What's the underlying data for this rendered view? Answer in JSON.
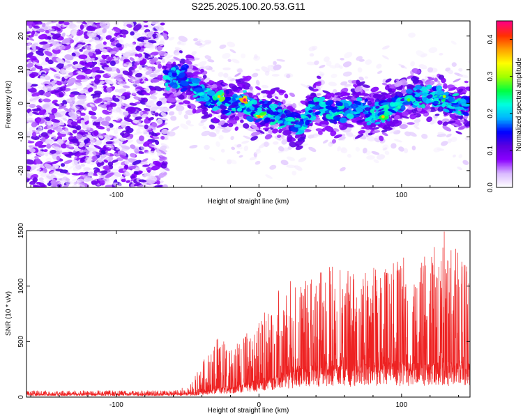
{
  "page": {
    "title": "S225.2025.100.20.53.G11"
  },
  "chart_data": [
    {
      "type": "heatmap",
      "title": "S225.2025.100.20.53.G11",
      "xlabel": "Height of straight line (km)",
      "ylabel": "Frequency (Hz)",
      "xlim": [
        -163,
        148
      ],
      "ylim": [
        -25,
        24.5
      ],
      "x_ticks": [
        -100,
        0,
        100
      ],
      "x_tick_labels": [
        "-100",
        "0",
        "100"
      ],
      "y_ticks": [
        -20,
        -10,
        0,
        10,
        20
      ],
      "y_tick_labels": [
        "-20",
        "-10",
        "0",
        "10",
        "20"
      ],
      "grid": false,
      "colorbar": {
        "label": "Normalized spectral amplitude",
        "range": [
          0.0,
          0.45
        ],
        "ticks": [
          0.0,
          0.1,
          0.2,
          0.3,
          0.4
        ],
        "tick_labels": [
          "0.0",
          "0.1",
          "0.2",
          "0.3",
          "0.4"
        ],
        "colormap": [
          "#ffffff",
          "#d9b8ff",
          "#8a00ff",
          "#5a00e0",
          "#0000ff",
          "#00b4ff",
          "#00ffe0",
          "#00ff40",
          "#a0ff00",
          "#ffff00",
          "#ffa000",
          "#ff3000",
          "#ff0080"
        ]
      },
      "background_noise": {
        "x_range": [
          -163,
          -65
        ],
        "amplitude_range": [
          0.03,
          0.12
        ]
      },
      "signal_ridge": [
        {
          "x": -65,
          "y": 7
        },
        {
          "x": -55,
          "y": 8
        },
        {
          "x": -48,
          "y": 6
        },
        {
          "x": -40,
          "y": 3
        },
        {
          "x": -30,
          "y": 1
        },
        {
          "x": -20,
          "y": 0
        },
        {
          "x": -10,
          "y": 0
        },
        {
          "x": 0,
          "y": -3
        },
        {
          "x": 10,
          "y": -3
        },
        {
          "x": 20,
          "y": -4
        },
        {
          "x": 30,
          "y": -6
        },
        {
          "x": 40,
          "y": 0
        },
        {
          "x": 50,
          "y": -3
        },
        {
          "x": 60,
          "y": -2
        },
        {
          "x": 70,
          "y": -1
        },
        {
          "x": 80,
          "y": -3
        },
        {
          "x": 90,
          "y": -2
        },
        {
          "x": 100,
          "y": 1
        },
        {
          "x": 110,
          "y": 2
        },
        {
          "x": 120,
          "y": 2
        },
        {
          "x": 130,
          "y": 1
        },
        {
          "x": 140,
          "y": -1
        },
        {
          "x": 148,
          "y": 0
        }
      ],
      "hotspots": [
        {
          "x": -28,
          "y": 2,
          "amplitude": 0.36
        },
        {
          "x": -10,
          "y": 1,
          "amplitude": 0.45
        },
        {
          "x": 0,
          "y": -4,
          "amplitude": 0.38
        },
        {
          "x": 87,
          "y": -4,
          "amplitude": 0.36
        },
        {
          "x": 105,
          "y": 1,
          "amplitude": 0.28
        },
        {
          "x": 130,
          "y": 2,
          "amplitude": 0.3
        }
      ]
    },
    {
      "type": "line",
      "title": "",
      "xlabel": "Height of straight line (km)",
      "ylabel": "SNR (10 * v/v)",
      "xlim": [
        -163,
        148
      ],
      "ylim": [
        0,
        1500
      ],
      "x_ticks": [
        -100,
        0,
        100
      ],
      "x_tick_labels": [
        "-100",
        "0",
        "100"
      ],
      "y_ticks": [
        0,
        500,
        1000,
        1500
      ],
      "y_tick_labels": [
        "0",
        "500",
        "1000",
        "1500"
      ],
      "grid": false,
      "series": [
        {
          "color": "#ee2222",
          "envelope": [
            {
              "x": -163,
              "baseline": 25,
              "peak": 60
            },
            {
              "x": -60,
              "baseline": 25,
              "peak": 60
            },
            {
              "x": -50,
              "baseline": 30,
              "peak": 100
            },
            {
              "x": -40,
              "baseline": 40,
              "peak": 300
            },
            {
              "x": -30,
              "baseline": 60,
              "peak": 550
            },
            {
              "x": -15,
              "baseline": 90,
              "peak": 500
            },
            {
              "x": 0,
              "baseline": 130,
              "peak": 700
            },
            {
              "x": 15,
              "baseline": 170,
              "peak": 1000
            },
            {
              "x": 30,
              "baseline": 220,
              "peak": 1100
            },
            {
              "x": 50,
              "baseline": 240,
              "peak": 1200
            },
            {
              "x": 70,
              "baseline": 230,
              "peak": 1150
            },
            {
              "x": 90,
              "baseline": 250,
              "peak": 1200
            },
            {
              "x": 110,
              "baseline": 240,
              "peak": 1300
            },
            {
              "x": 130,
              "baseline": 250,
              "peak": 1500
            },
            {
              "x": 148,
              "baseline": 240,
              "peak": 1200
            }
          ]
        }
      ]
    }
  ]
}
